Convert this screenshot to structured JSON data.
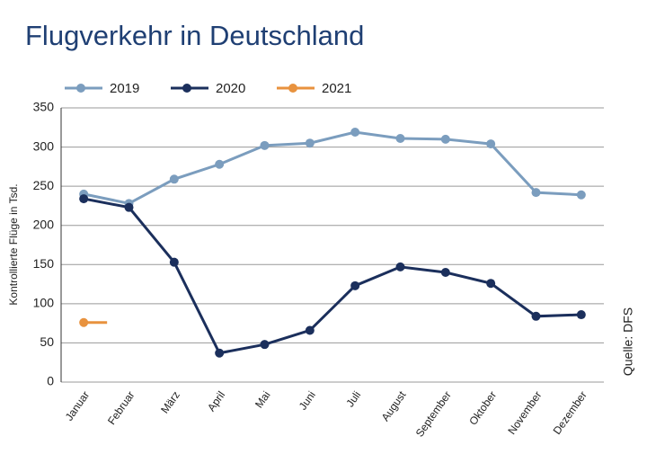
{
  "chart_data": {
    "type": "line",
    "title": "Flugverkehr in Deutschland",
    "y_label": "Kontrollierte Flüge in Tsd.",
    "source": "Quelle: DFS",
    "categories": [
      "Januar",
      "Februar",
      "März",
      "April",
      "Mai",
      "Juni",
      "Juli",
      "August",
      "September",
      "Oktober",
      "November",
      "Dezember"
    ],
    "series": [
      {
        "name": "2019",
        "color": "#7b9dbe",
        "values": [
          240,
          228,
          259,
          278,
          302,
          305,
          319,
          311,
          310,
          304,
          242,
          239
        ]
      },
      {
        "name": "2020",
        "color": "#1b2f5c",
        "values": [
          234,
          223,
          153,
          37,
          48,
          66,
          123,
          147,
          140,
          126,
          84,
          86
        ]
      },
      {
        "name": "2021",
        "color": "#e8923e",
        "values": [
          76,
          null,
          null,
          null,
          null,
          null,
          null,
          null,
          null,
          null,
          null,
          null
        ]
      }
    ],
    "ylim": [
      0,
      350
    ],
    "yticks": [
      0,
      50,
      100,
      150,
      200,
      250,
      300,
      350
    ],
    "grid": true,
    "legend": "top-left"
  }
}
